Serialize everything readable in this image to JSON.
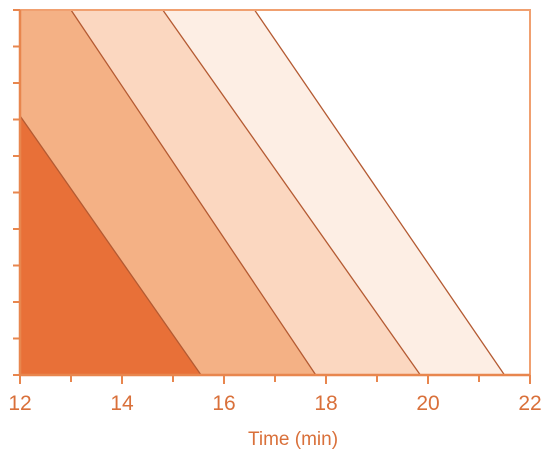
{
  "chart_data": {
    "type": "area",
    "title": "",
    "xlabel": "Time (min)",
    "ylabel": "",
    "xlim": [
      12,
      22
    ],
    "ylim": [
      0,
      10
    ],
    "x_ticks": [
      "12",
      "14",
      "16",
      "18",
      "20",
      "22"
    ],
    "x_minor_ticks": [
      13,
      15,
      17,
      19,
      21
    ],
    "y_tick_count": 11,
    "y_tick_labels_visible": false,
    "grid": false,
    "legend": "none",
    "bands": [
      {
        "color": "#e87038",
        "boundary": [
          [
            12,
            7.1
          ],
          [
            15.55,
            0
          ]
        ]
      },
      {
        "color": "#f4b185",
        "boundary": [
          [
            13.0,
            10
          ],
          [
            17.8,
            0
          ]
        ]
      },
      {
        "color": "#fbd7c0",
        "boundary": [
          [
            14.8,
            10
          ],
          [
            19.85,
            0
          ]
        ]
      },
      {
        "color": "#fdeee4",
        "boundary": [
          [
            16.6,
            10
          ],
          [
            21.5,
            0
          ]
        ]
      }
    ],
    "colors": {
      "axis": "#e8864e",
      "frame": "#f0a070",
      "boundary_line": "#b45a32",
      "background": "#ffffff"
    }
  }
}
